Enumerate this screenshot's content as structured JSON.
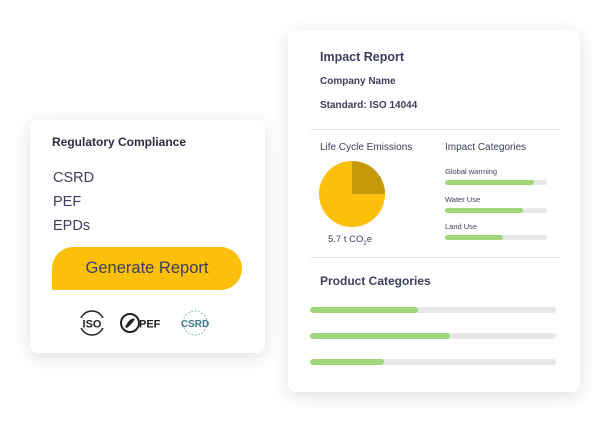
{
  "impact_report": {
    "title": "Impact Report",
    "company": "Company Name",
    "standard": "Standard: ISO 14044",
    "life_cycle_label": "Life Cycle Emissions",
    "emissions": {
      "value_prefix": "5.7 t CO",
      "subscript": "2",
      "suffix": "e",
      "pie_fraction_dark": 0.25
    },
    "impact_categories_label": "Impact Categories",
    "impact_categories": [
      {
        "label": "Global warming",
        "fill": 0.87
      },
      {
        "label": "Water Use",
        "fill": 0.76
      },
      {
        "label": "Land Use",
        "fill": 0.57
      }
    ],
    "product_categories_label": "Product Categories",
    "product_categories": [
      0.44,
      0.57,
      0.3
    ],
    "colors": {
      "pie_light": "#fcbf0a",
      "pie_dark": "#c49a0c",
      "bar_fill": "#9fd67a",
      "bar_track": "#e7e7e7"
    }
  },
  "compliance": {
    "title": "Regulatory Compliance",
    "items": [
      "CSRD",
      "PEF",
      "EPDs"
    ],
    "button_label": "Generate Report",
    "logos": [
      "ISO",
      "PEF",
      "CSRD"
    ],
    "colors": {
      "button": "#fcbf0a",
      "csrd_logo": "#3b7a8c"
    }
  }
}
